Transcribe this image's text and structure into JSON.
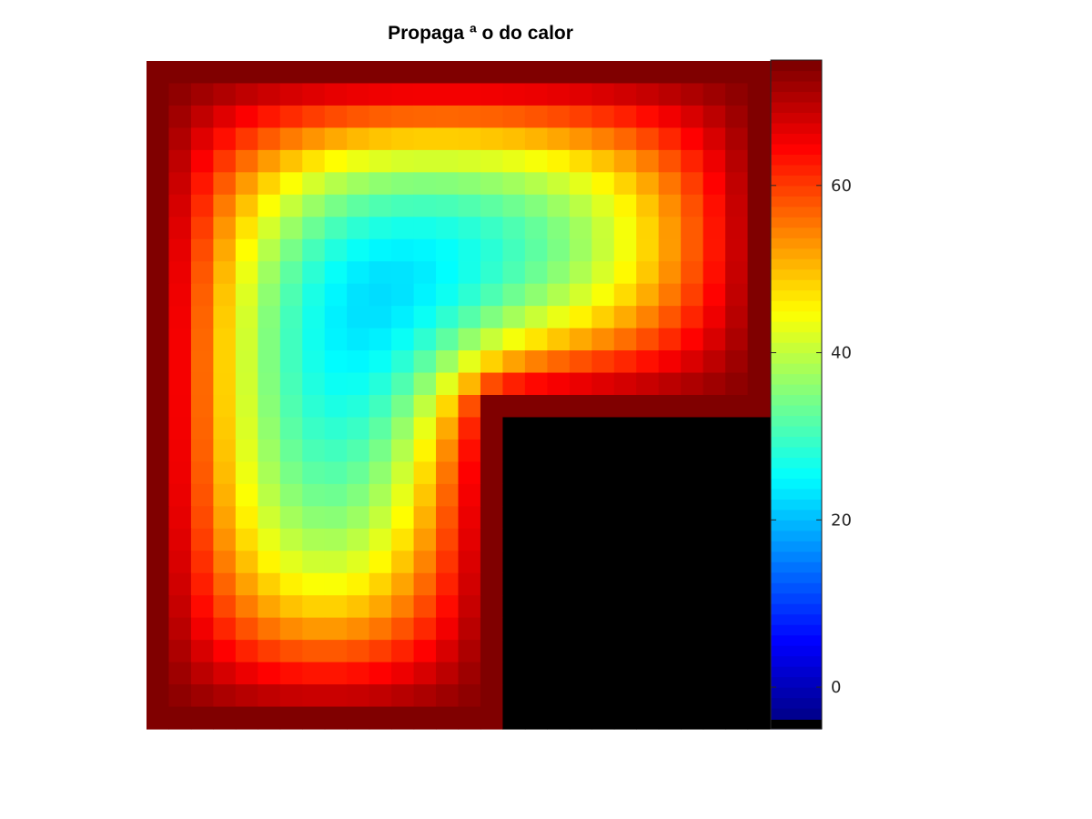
{
  "chart_data": {
    "type": "heatmap",
    "title": "Propaga  ª o do calor",
    "xlabel": "",
    "ylabel": "",
    "colormap": "jet",
    "colorbar": {
      "limits": [
        -5,
        75
      ],
      "ticks": [
        0,
        20,
        40,
        60
      ],
      "tick_labels": [
        "0",
        "20",
        "40",
        "60"
      ]
    },
    "grid": {
      "rows": 30,
      "cols": 28,
      "boundary_value": 75,
      "masked_region": {
        "description": "L-shaped domain; lower-right block is outside the domain",
        "row_start": 16,
        "col_start": 16,
        "color": "#000000"
      }
    },
    "grid_lines": false
  }
}
